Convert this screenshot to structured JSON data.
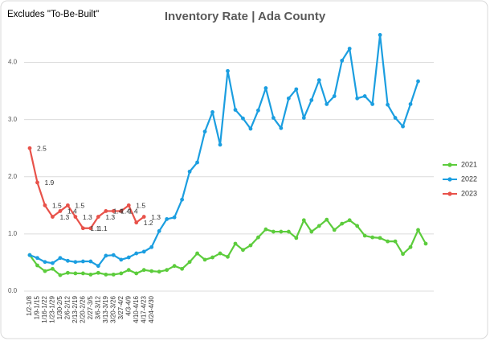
{
  "chart_data": {
    "type": "line",
    "title": "Inventory Rate | Ada County",
    "annotation": "Excludes \"To-Be-Built\"",
    "categories": [
      "1/2-1/8",
      "1/9-1/15",
      "1/16-1/22",
      "1/23-1/29",
      "1/30-2/5",
      "2/6-2/12",
      "2/13-2/19",
      "2/20-2/26",
      "2/27-3/5",
      "3/6-3/12",
      "3/13-3/19",
      "3/20-3/26",
      "3/27-4/2",
      "4/3-4/9",
      "4/10-4/16",
      "4/17-4/23",
      "4/24-4/30",
      null,
      null,
      null,
      null,
      null,
      null,
      null,
      null,
      null,
      null,
      null,
      null,
      null,
      null,
      null,
      null,
      null,
      null,
      null,
      null,
      null,
      null,
      null,
      null,
      null,
      null,
      null,
      null,
      null,
      null,
      null,
      null,
      null,
      null,
      null,
      null
    ],
    "series": [
      {
        "name": "2021",
        "color": "#5ccc3c",
        "values": [
          0.63,
          0.45,
          0.35,
          0.39,
          0.28,
          0.32,
          0.31,
          0.31,
          0.29,
          0.32,
          0.29,
          0.29,
          0.31,
          0.37,
          0.31,
          0.37,
          0.35,
          0.34,
          0.37,
          0.44,
          0.39,
          0.51,
          0.66,
          0.55,
          0.59,
          0.66,
          0.6,
          0.83,
          0.72,
          0.8,
          0.94,
          1.08,
          1.04,
          1.04,
          1.04,
          0.93,
          1.24,
          1.04,
          1.14,
          1.25,
          1.07,
          1.18,
          1.24,
          1.14,
          0.97,
          0.94,
          0.93,
          0.87,
          0.87,
          0.65,
          0.77,
          1.07,
          0.83
        ]
      },
      {
        "name": "2022",
        "color": "#1b9ee0",
        "values": [
          0.63,
          0.58,
          0.51,
          0.49,
          0.58,
          0.53,
          0.51,
          0.52,
          0.52,
          0.44,
          0.62,
          0.63,
          0.55,
          0.59,
          0.66,
          0.69,
          0.77,
          1.05,
          1.26,
          1.29,
          1.6,
          2.09,
          2.25,
          2.79,
          3.13,
          2.56,
          3.85,
          3.17,
          3.02,
          2.84,
          3.16,
          3.55,
          3.03,
          2.85,
          3.37,
          3.53,
          3.03,
          3.34,
          3.69,
          3.27,
          3.41,
          4.03,
          4.24,
          3.37,
          3.41,
          3.27,
          4.48,
          3.26,
          3.03,
          2.88,
          3.27,
          3.67,
          null
        ]
      },
      {
        "name": "2023",
        "color": "#e8524a",
        "values": [
          2.5,
          1.9,
          1.5,
          1.3,
          1.4,
          1.5,
          1.3,
          1.1,
          1.1,
          1.3,
          1.4,
          1.4,
          1.4,
          1.5,
          1.2,
          1.3,
          null,
          null,
          null,
          null,
          null,
          null,
          null,
          null,
          null,
          null,
          null,
          null,
          null,
          null,
          null,
          null,
          null,
          null,
          null,
          null,
          null,
          null,
          null,
          null,
          null,
          null,
          null,
          null,
          null,
          null,
          null,
          null,
          null,
          null,
          null,
          null,
          null
        ]
      }
    ],
    "ylim": [
      0,
      4.5
    ],
    "yticks": [
      {
        "value": 0,
        "label": "0.0"
      },
      {
        "value": 1,
        "label": "1.0"
      },
      {
        "value": 2,
        "label": "2.0"
      },
      {
        "value": 3,
        "label": "3.0"
      },
      {
        "value": 4,
        "label": "4.0"
      }
    ],
    "grid": true,
    "legend": "right"
  }
}
